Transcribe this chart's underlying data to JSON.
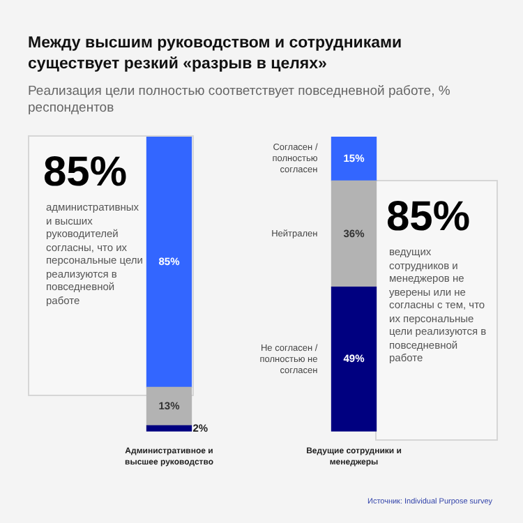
{
  "chart_data": {
    "type": "bar",
    "title": "Между высшим руководством и сотрудниками существует резкий «разрыв в целях»",
    "subtitle": "Реализация цели полностью соответствует повседневной работе, % респондентов",
    "categories": [
      "Административное и высшее руководство",
      "Ведущие сотрудники и менеджеры"
    ],
    "stacked": true,
    "legend": false,
    "grid": false,
    "series": [
      {
        "name": "Не согласен / полностью не согласен",
        "color": "#000080",
        "values": [
          2,
          49
        ],
        "value_labels": [
          "2%",
          "49%"
        ]
      },
      {
        "name": "Нейтрален",
        "color": "#b3b3b3",
        "values": [
          13,
          36
        ],
        "value_labels": [
          "13%",
          "36%"
        ]
      },
      {
        "name": "Согласен / полностью согласен",
        "color": "#3366ff",
        "values": [
          85,
          15
        ],
        "value_labels": [
          "85%",
          "15%"
        ]
      }
    ],
    "annotations": [
      "85%",
      "административных и высших руководителей согласны, что их персональные цели реализуются в повседневной работе",
      "85%",
      "ведущих сотрудников и менеджеров не уверены или не согласны с тем, что их персональные цели реализуются в повседневной работе",
      "Источник: Individual Purpose survey"
    ]
  }
}
